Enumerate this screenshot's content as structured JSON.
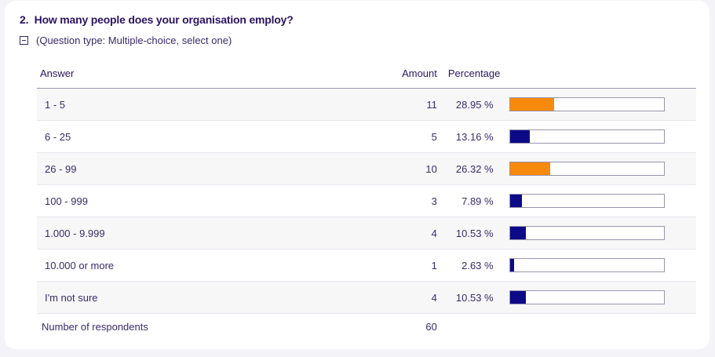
{
  "question": {
    "number_title": "2.  How many people does your organisation employ?",
    "type_label": "(Question type: Multiple-choice, select one)"
  },
  "table": {
    "headers": {
      "answer": "Answer",
      "amount": "Amount",
      "percentage": "Percentage"
    },
    "rows": [
      {
        "answer": "1 - 5",
        "amount": "11",
        "percentage": "28.95 %",
        "fraction": 0.2895,
        "color": "#f7890d"
      },
      {
        "answer": "6 - 25",
        "amount": "5",
        "percentage": "13.16 %",
        "fraction": 0.1316,
        "color": "#0c0a86"
      },
      {
        "answer": "26 - 99",
        "amount": "10",
        "percentage": "26.32 %",
        "fraction": 0.2632,
        "color": "#f7890d"
      },
      {
        "answer": "100 - 999",
        "amount": "3",
        "percentage": "7.89 %",
        "fraction": 0.0789,
        "color": "#0c0a86"
      },
      {
        "answer": "1.000 - 9.999",
        "amount": "4",
        "percentage": "10.53 %",
        "fraction": 0.1053,
        "color": "#0c0a86"
      },
      {
        "answer": "10.000 or more",
        "amount": "1",
        "percentage": "2.63 %",
        "fraction": 0.0263,
        "color": "#0c0a86"
      },
      {
        "answer": "I'm not sure",
        "amount": "4",
        "percentage": "10.53 %",
        "fraction": 0.1053,
        "color": "#0c0a86"
      }
    ],
    "footer": {
      "label": "Number of respondents",
      "amount": "60"
    }
  },
  "icons": {
    "collapse": "collapse-minus-icon"
  }
}
